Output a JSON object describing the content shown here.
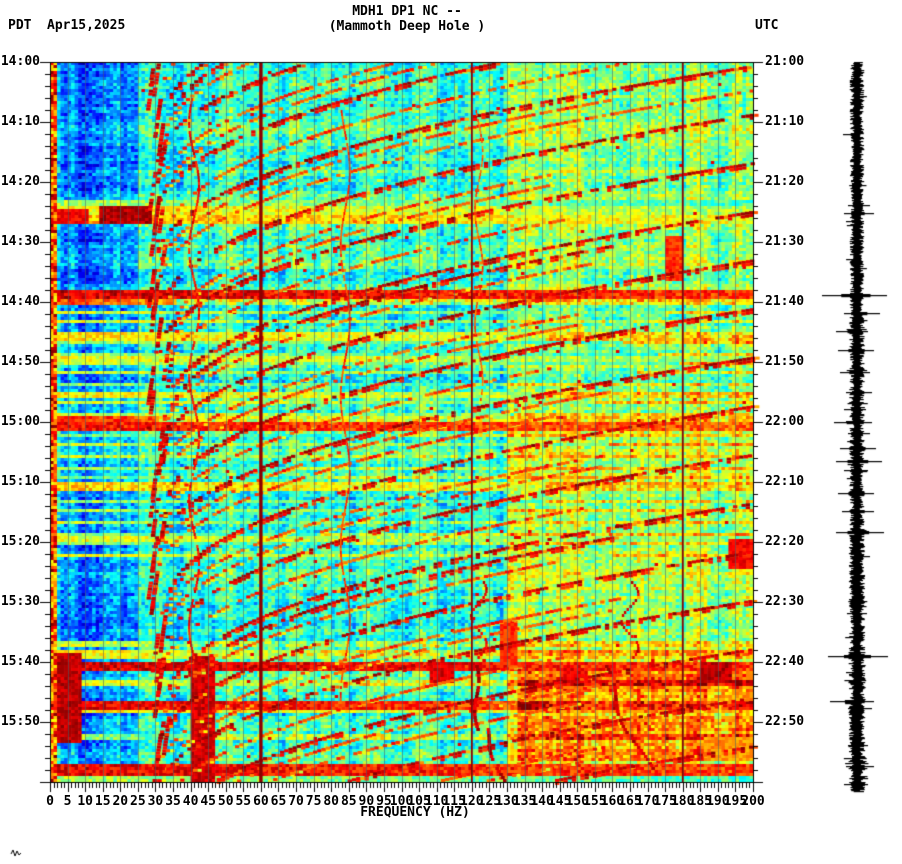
{
  "header": {
    "timezone_left": "PDT",
    "date": "Apr15,2025",
    "title_line1": "MDH1 DP1 NC --",
    "title_line2": "(Mammoth Deep Hole )",
    "timezone_right": "UTC"
  },
  "colors": {
    "background": "#ffffff",
    "text": "#000000",
    "trace": "#000000",
    "hot_line": "#8b0000",
    "grid_line": "rgba(70,95,105,0.55)"
  },
  "chart_data": {
    "type": "heatmap",
    "subtype": "seismic-spectrogram-with-helicorder-trace",
    "station": "MDH1 DP1 NC -- (Mammoth Deep Hole )",
    "colormap": "jet",
    "x_axis": {
      "label": "FREQUENCY (HZ)",
      "min": 0,
      "max": 200,
      "major_tick_hz": 5,
      "minor_tick_hz": 1,
      "tick_labels": [
        "0",
        "5",
        "10",
        "15",
        "20",
        "25",
        "30",
        "35",
        "40",
        "45",
        "50",
        "55",
        "60",
        "65",
        "70",
        "75",
        "80",
        "85",
        "90",
        "95",
        "100",
        "105",
        "110",
        "115",
        "120",
        "125",
        "130",
        "135",
        "140",
        "145",
        "150",
        "155",
        "160",
        "165",
        "170",
        "175",
        "180",
        "185",
        "190",
        "195",
        "200"
      ]
    },
    "left_time_axis": {
      "timezone": "PDT",
      "start": "14:00",
      "end": "16:00",
      "major_tick_min": 10,
      "minor_tick_min": 2,
      "labels": [
        "14:00",
        "14:10",
        "14:20",
        "14:30",
        "14:40",
        "14:50",
        "15:00",
        "15:10",
        "15:20",
        "15:30",
        "15:40",
        "15:50"
      ]
    },
    "right_time_axis": {
      "timezone": "UTC",
      "start": "21:00",
      "end": "23:00",
      "major_tick_min": 10,
      "minor_tick_min": 2,
      "labels": [
        "21:00",
        "21:10",
        "21:20",
        "21:30",
        "21:40",
        "21:50",
        "22:00",
        "22:10",
        "22:20",
        "22:30",
        "22:40",
        "22:50"
      ]
    },
    "base_levels": {
      "edge": 0.72,
      "left_low": 0.25,
      "left_mid": 0.31,
      "left_late": 0.27,
      "mid": 0.41,
      "high": 0.5,
      "high_late": 0.54
    },
    "features": {
      "power_lines_hz": [
        {
          "f": 60,
          "w": 3.4
        },
        {
          "f": 120,
          "w": 1.7
        },
        {
          "f": 180,
          "w": 1.7
        }
      ],
      "grid_hz_step": 5,
      "glide_arcs": {
        "t200_first": -40,
        "spacing_min": 4.05,
        "count": 39,
        "rise_min": 34,
        "tail_f": 31,
        "shape_pow": 0.45,
        "strengths": [
          1,
          0.68,
          0.85,
          0.6
        ]
      },
      "events": [
        {
          "t": 23.2,
          "d": 1.0,
          "fmax": 200,
          "level": 0.62
        },
        {
          "t": 24.3,
          "d": 1.3,
          "fmax": 200,
          "level": 0.72
        },
        {
          "t": 25.6,
          "d": 1.2,
          "fmax": 200,
          "level": 0.78
        },
        {
          "t": 38.3,
          "d": 1.2,
          "fmax": 200,
          "level": 1.0
        },
        {
          "t": 39.7,
          "d": 0.6,
          "fmax": 35,
          "level": 0.9
        },
        {
          "t": 45.4,
          "d": 0.7,
          "fmax": 140,
          "level": 0.74
        },
        {
          "t": 49.3,
          "d": 0.7,
          "fmax": 200,
          "level": 0.7
        },
        {
          "t": 55.3,
          "d": 0.7,
          "fmax": 140,
          "level": 0.72
        },
        {
          "t": 59.3,
          "d": 0.7,
          "fmax": 30,
          "level": 0.95
        },
        {
          "t": 60.3,
          "d": 0.9,
          "fmax": 200,
          "level": 0.95
        },
        {
          "t": 70.4,
          "d": 0.8,
          "fmax": 140,
          "level": 0.76
        },
        {
          "t": 79.0,
          "d": 0.9,
          "fmax": 200,
          "level": 0.68
        },
        {
          "t": 96.5,
          "d": 0.7,
          "fmax": 30,
          "level": 0.7
        },
        {
          "t": 98.3,
          "d": 0.8,
          "fmax": 70,
          "level": 0.72
        },
        {
          "t": 100.0,
          "d": 1.4,
          "fmax": 200,
          "level": 1.0
        },
        {
          "t": 103.0,
          "d": 0.8,
          "fmax": 80,
          "level": 0.7
        },
        {
          "t": 106.6,
          "d": 1.2,
          "fmax": 140,
          "level": 0.98
        },
        {
          "t": 107.9,
          "d": 0.6,
          "fmax": 200,
          "level": 0.72
        },
        {
          "t": 112.0,
          "d": 0.6,
          "fmax": 40,
          "level": 0.62
        },
        {
          "t": 117.4,
          "d": 1.2,
          "fmax": 200,
          "level": 0.98
        },
        {
          "t": 119.2,
          "d": 0.6,
          "fmax": 200,
          "level": 0.62
        }
      ],
      "streak_band": {
        "t0": 40,
        "t1": 83,
        "step_min": 1.75,
        "level": 0.64,
        "fmax_mean": 120
      },
      "wavy_lines": [
        {
          "f": 41,
          "t0": 6,
          "t1": 99,
          "amp": 1.4,
          "period": 21,
          "w": 2.2,
          "level": 0.93,
          "drift": 0
        },
        {
          "f": 84,
          "t0": 8,
          "t1": 106,
          "amp": 1.3,
          "period": 25,
          "w": 1.8,
          "level": 0.88,
          "drift": 0
        },
        {
          "f": 122,
          "t0": 8,
          "t1": 56,
          "amp": 1.1,
          "period": 19,
          "w": 1.6,
          "level": 0.85,
          "drift": 0
        },
        {
          "f": 122,
          "t0": 86.5,
          "t1": 99,
          "amp": 2.2,
          "period": 9,
          "w": 2.4,
          "level": 0.96,
          "drift": 0
        },
        {
          "f": 165,
          "t0": 86.5,
          "t1": 99,
          "amp": 2.4,
          "period": 9,
          "w": 2.4,
          "level": 0.96,
          "drift": 0
        },
        {
          "f": 120.5,
          "t0": 100.5,
          "t1": 111,
          "amp": 1.2,
          "period": 14,
          "w": 3.6,
          "level": 1.0,
          "drift": 2
        },
        {
          "f": 124,
          "t0": 111,
          "t1": 119.6,
          "amp": 1.0,
          "period": 12,
          "w": 3.6,
          "level": 1.0,
          "drift": 5
        },
        {
          "f": 157,
          "t0": 100.5,
          "t1": 117.5,
          "amp": 1.6,
          "period": 16,
          "w": 3.6,
          "level": 1.0,
          "drift": 13
        }
      ],
      "blobs": [
        {
          "f0": 0,
          "f1": 8,
          "t0": 98.5,
          "t1": 113,
          "level": 0.99
        },
        {
          "f0": 0,
          "f1": 10,
          "t0": 24.2,
          "t1": 26.8,
          "level": 0.93
        },
        {
          "f0": 14,
          "f1": 28,
          "t0": 23.9,
          "t1": 26.6,
          "level": 1.0
        },
        {
          "f0": 108,
          "f1": 114,
          "t0": 99.8,
          "t1": 103,
          "level": 0.96
        },
        {
          "f0": 146,
          "f1": 152,
          "t0": 100.8,
          "t1": 103,
          "level": 0.94
        },
        {
          "f0": 185,
          "f1": 193,
          "t0": 99.8,
          "t1": 103.2,
          "level": 0.99
        },
        {
          "f0": 193,
          "f1": 200,
          "t0": 79.5,
          "t1": 84,
          "level": 0.93
        },
        {
          "f0": 175,
          "f1": 179,
          "t0": 29,
          "t1": 36,
          "level": 0.88
        },
        {
          "f0": 128,
          "f1": 132,
          "t0": 93,
          "t1": 100,
          "level": 0.88
        },
        {
          "f0": 40,
          "f1": 46,
          "t0": 99,
          "t1": 120,
          "level": 0.97
        },
        {
          "f0": 186,
          "f1": 200,
          "t0": 112.5,
          "t1": 116,
          "level": 0.78
        }
      ],
      "warm_patch": {
        "f0": 133,
        "f1": 200,
        "t0": 101.5,
        "t1": 116,
        "boost": 0.17
      }
    },
    "trace": {
      "spikes": [
        {
          "t": 12,
          "l": 14,
          "r": 3
        },
        {
          "t": 23.8,
          "l": 9,
          "r": 13
        },
        {
          "t": 25.2,
          "l": 13,
          "r": 17
        },
        {
          "t": 26.5,
          "l": 11,
          "r": 7
        },
        {
          "t": 38.8,
          "l": 35,
          "r": 30
        },
        {
          "t": 41.8,
          "l": 13,
          "r": 23
        },
        {
          "t": 44.8,
          "l": 21,
          "r": 11
        },
        {
          "t": 48,
          "l": 19,
          "r": 17
        },
        {
          "t": 51.7,
          "l": 17,
          "r": 13
        },
        {
          "t": 55,
          "l": 11,
          "r": 15
        },
        {
          "t": 57.8,
          "l": 13,
          "r": 9
        },
        {
          "t": 60,
          "l": 23,
          "r": 15
        },
        {
          "t": 61.8,
          "l": 9,
          "r": 13
        },
        {
          "t": 64.3,
          "l": 17,
          "r": 19
        },
        {
          "t": 66.5,
          "l": 21,
          "r": 25
        },
        {
          "t": 68,
          "l": 13,
          "r": 11
        },
        {
          "t": 71.8,
          "l": 19,
          "r": 17
        },
        {
          "t": 74.8,
          "l": 15,
          "r": 17
        },
        {
          "t": 78.3,
          "l": 21,
          "r": 27
        },
        {
          "t": 82.3,
          "l": 7,
          "r": 13
        },
        {
          "t": 99,
          "l": 29,
          "r": 31
        },
        {
          "t": 106.5,
          "l": 27,
          "r": 17
        },
        {
          "t": 107.6,
          "l": 9,
          "r": 15
        },
        {
          "t": 113.8,
          "l": 9,
          "r": 11
        },
        {
          "t": 117.4,
          "l": 11,
          "r": 17
        },
        {
          "t": 120.3,
          "l": 13,
          "r": 11
        }
      ]
    }
  }
}
